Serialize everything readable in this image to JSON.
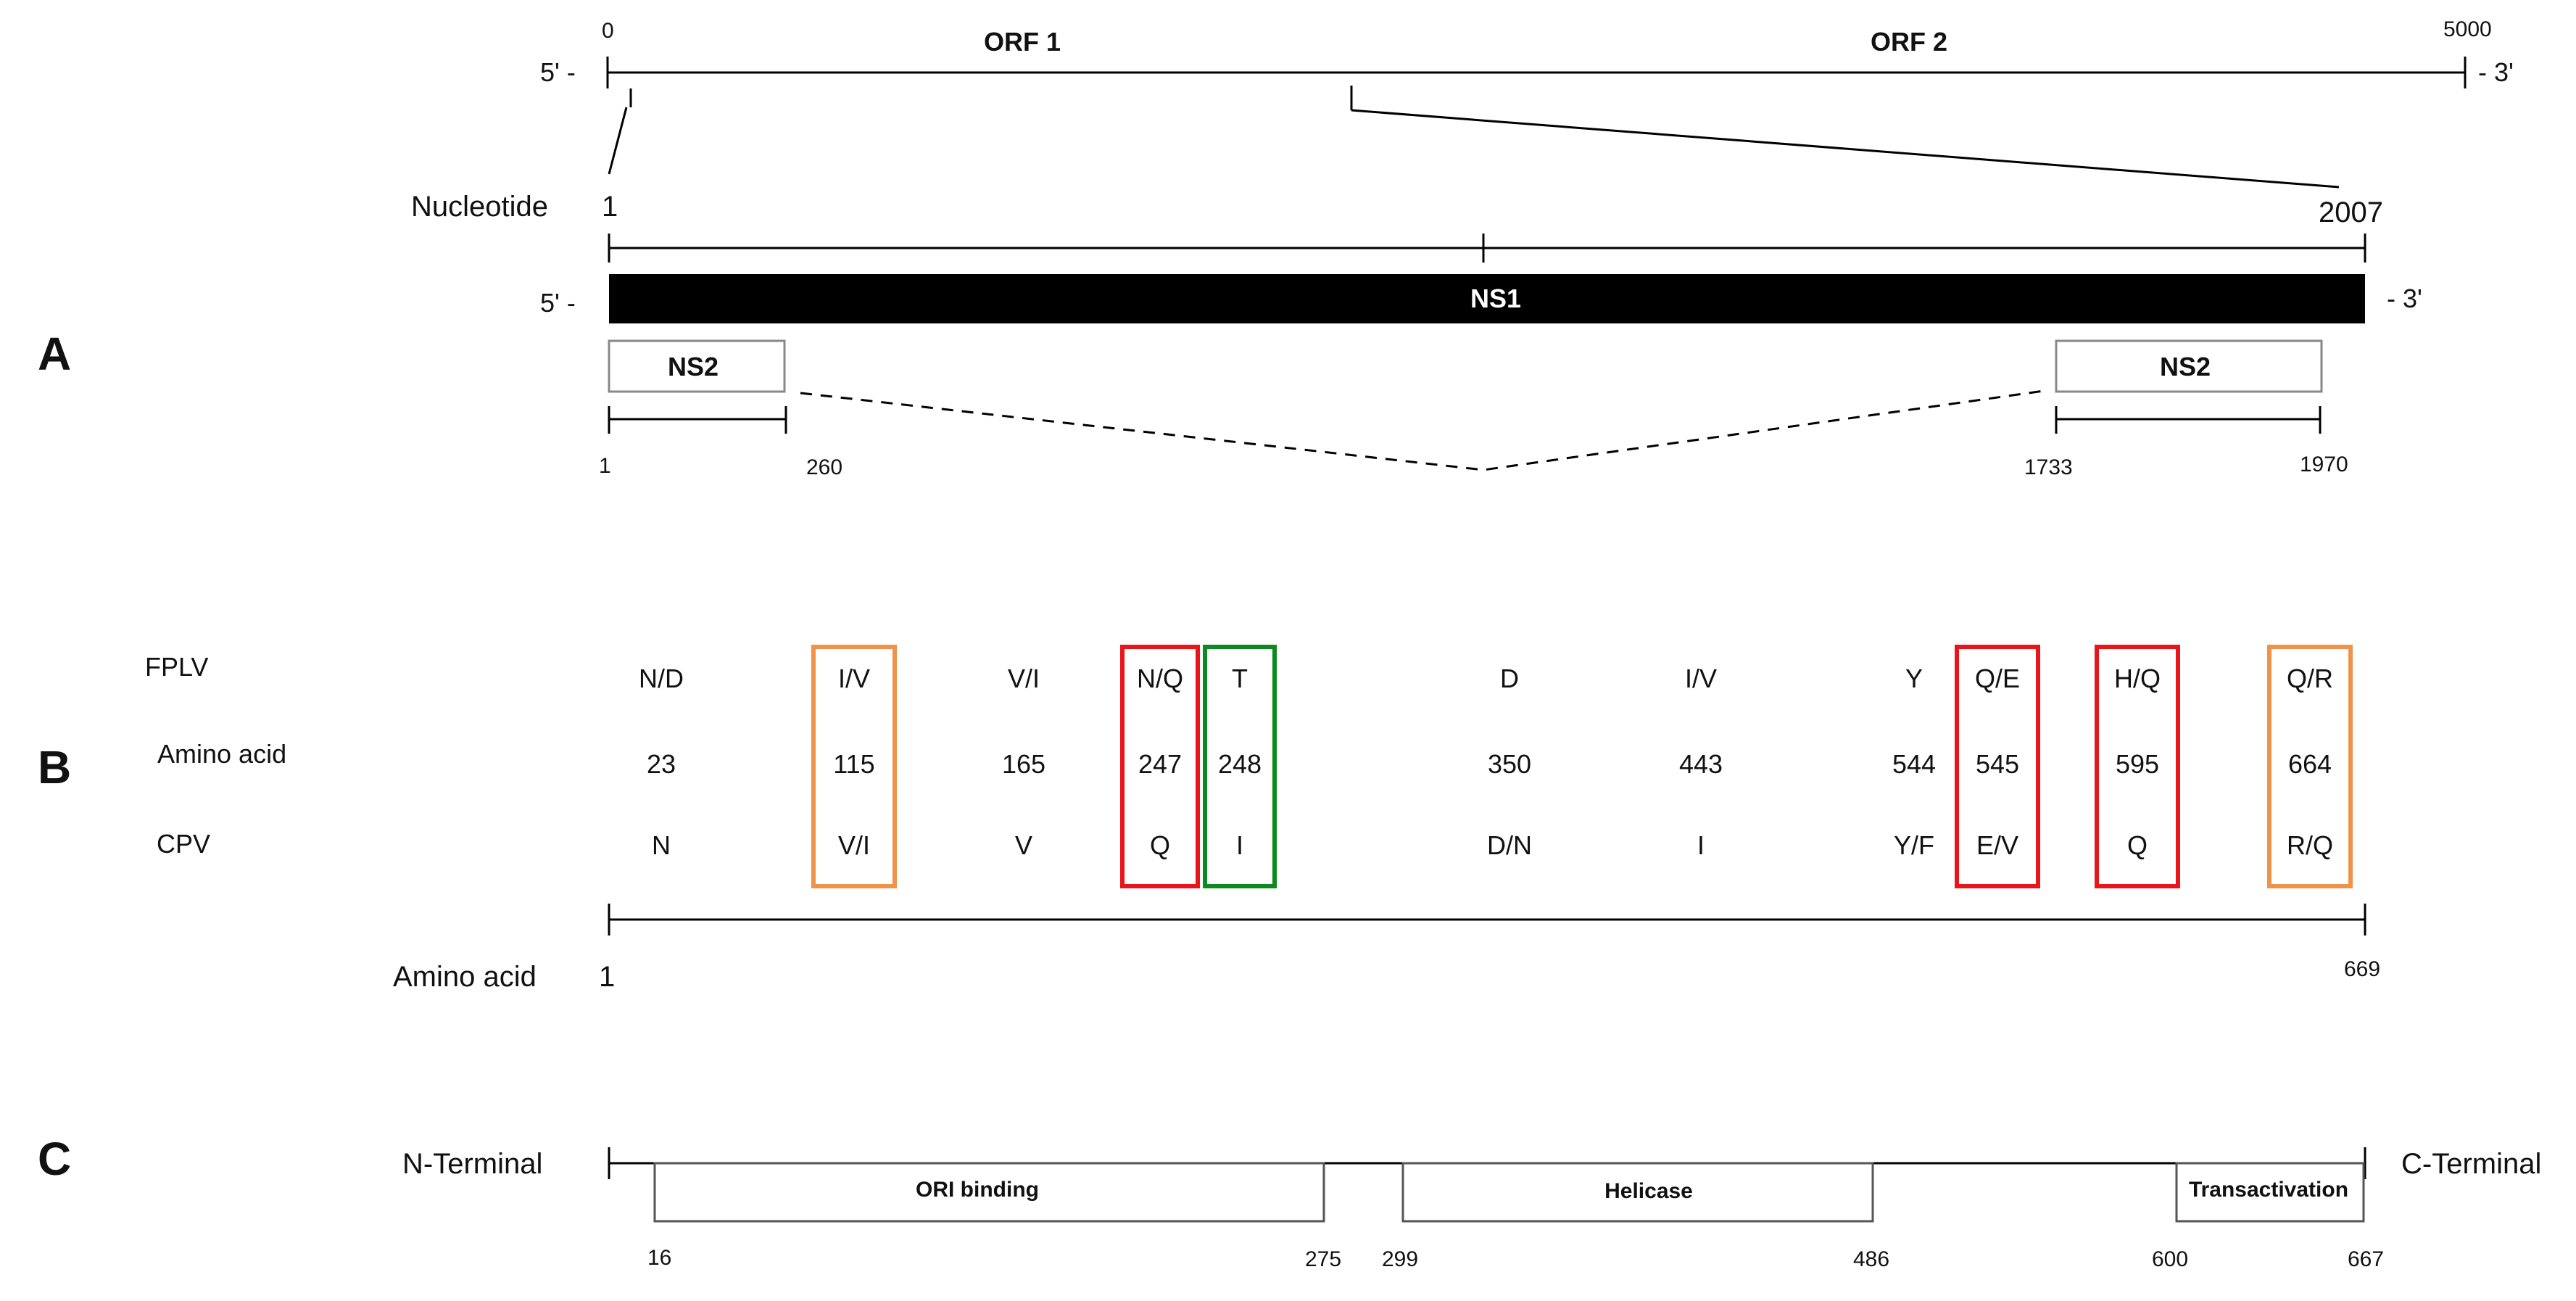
{
  "panel_labels": {
    "a": "A",
    "b": "B",
    "c": "C"
  },
  "genome": {
    "start": "0",
    "end": "5000",
    "five_prime": "5' -",
    "three_prime": "- 3'",
    "orf1": "ORF 1",
    "orf2": "ORF 2"
  },
  "ns": {
    "nucleotide_label": "Nucleotide",
    "nt_start": "1",
    "nt_end": "2007",
    "five_prime": "5' -",
    "three_prime": "- 3'",
    "ns1_label": "NS1",
    "ns2_left_label": "NS2",
    "ns2_right_label": "NS2",
    "ns2_left_start": "1",
    "ns2_left_end": "260",
    "ns2_right_start": "1733",
    "ns2_right_end": "1970"
  },
  "aa_panel": {
    "row_labels": {
      "fplv": "FPLV",
      "amino_acid": "Amino acid",
      "cpv": "CPV"
    },
    "columns": [
      {
        "fplv": "N/D",
        "pos": "23",
        "cpv": "N",
        "box": ""
      },
      {
        "fplv": "I/V",
        "pos": "115",
        "cpv": "V/I",
        "box": "orange"
      },
      {
        "fplv": "V/I",
        "pos": "165",
        "cpv": "V",
        "box": ""
      },
      {
        "fplv": "N/Q",
        "pos": "247",
        "cpv": "Q",
        "box": "red"
      },
      {
        "fplv": "T",
        "pos": "248",
        "cpv": "I",
        "box": "green"
      },
      {
        "fplv": "D",
        "pos": "350",
        "cpv": "D/N",
        "box": ""
      },
      {
        "fplv": "I/V",
        "pos": "443",
        "cpv": "I",
        "box": ""
      },
      {
        "fplv": "Y",
        "pos": "544",
        "cpv": "Y/F",
        "box": ""
      },
      {
        "fplv": "Q/E",
        "pos": "545",
        "cpv": "E/V",
        "box": "red"
      },
      {
        "fplv": "H/Q",
        "pos": "595",
        "cpv": "Q",
        "box": "red"
      },
      {
        "fplv": "Q/R",
        "pos": "664",
        "cpv": "R/Q",
        "box": "orange"
      }
    ],
    "axis_label": "Amino acid",
    "axis_start": "1",
    "axis_end": "669"
  },
  "domains": {
    "n_terminal": "N-Terminal",
    "c_terminal": "C-Terminal",
    "items": [
      {
        "label": "ORI binding",
        "start": "16",
        "end": "275"
      },
      {
        "label": "Helicase",
        "start": "299",
        "end": "486"
      },
      {
        "label": "Transactivation",
        "start": "600",
        "end": "667"
      }
    ]
  },
  "colors": {
    "orange": "#F0934A",
    "red": "#E8161B",
    "green": "#0B8A1F",
    "ns1_fill": "#000000"
  }
}
